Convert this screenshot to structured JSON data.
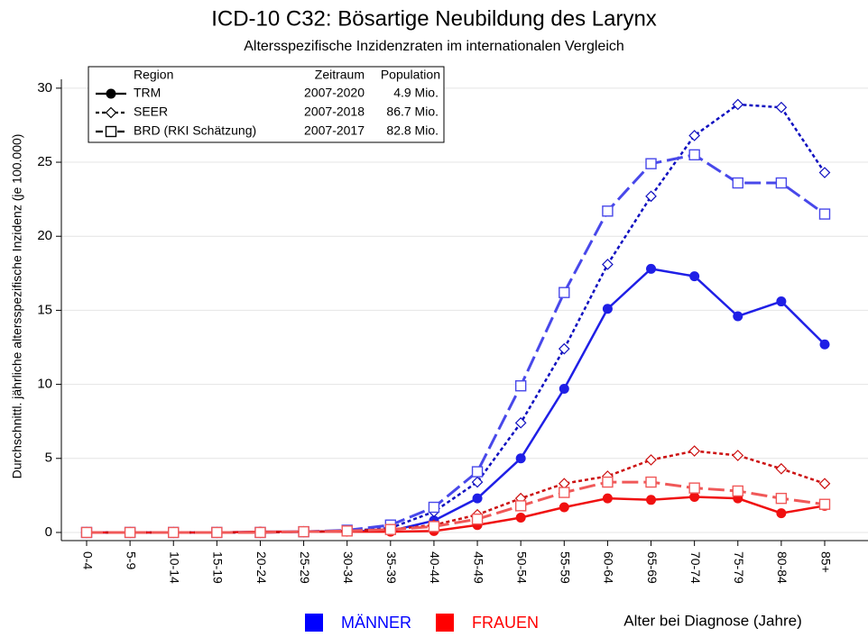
{
  "chart_data": {
    "type": "line",
    "title": "ICD-10 C32: Bösartige Neubildung des Larynx",
    "subtitle": "Altersspezifische Inzidenzraten im internationalen Vergleich",
    "ylabel": "Durchschnittl. jährliche altersspezifische Inzidenz (je 100.000)",
    "xlabel": "Alter bei Diagnose (Jahre)",
    "categories": [
      "0-4",
      "5-9",
      "10-14",
      "15-19",
      "20-24",
      "25-29",
      "30-34",
      "35-39",
      "40-44",
      "45-49",
      "50-54",
      "55-59",
      "60-64",
      "65-69",
      "70-74",
      "75-79",
      "80-84",
      "85+"
    ],
    "ylim": [
      -0.55,
      30.6
    ],
    "yticks": [
      0,
      5,
      10,
      15,
      20,
      25,
      30
    ],
    "grid": true,
    "legend": {
      "columns": [
        "Region",
        "Zeitraum",
        "Population"
      ],
      "entries": [
        {
          "period": "2007-2020",
          "population": "4.9 Mio."
        },
        {
          "period": "2007-2018",
          "population": "86.7 Mio."
        },
        {
          "period": "2007-2017",
          "population": "82.8 Mio."
        }
      ]
    },
    "groups": [
      {
        "name": "MÄNNER",
        "color": "#0000ff",
        "series": [
          {
            "name": "TRM",
            "color": "#1f1fe6",
            "dash": "solid",
            "marker": "circle",
            "values": [
              0,
              0,
              0,
              0,
              0.05,
              0.05,
              0.1,
              0.1,
              0.8,
              2.3,
              5.0,
              9.7,
              15.1,
              17.8,
              17.3,
              14.6,
              15.6,
              12.7
            ]
          },
          {
            "name": "SEER",
            "color": "#1010c0",
            "dash": "dotted",
            "marker": "diamond",
            "values": [
              0,
              0,
              0,
              0,
              0,
              0.05,
              0.1,
              0.3,
              1.4,
              3.4,
              7.4,
              12.4,
              18.1,
              22.7,
              26.8,
              28.9,
              28.7,
              24.3
            ]
          },
          {
            "name": "BRD (RKI Schätzung)",
            "color": "#4848ea",
            "dash": "dashed",
            "marker": "square",
            "values": [
              0,
              0,
              0,
              0,
              0,
              0.05,
              0.15,
              0.5,
              1.7,
              4.1,
              9.9,
              16.2,
              21.7,
              24.9,
              25.5,
              23.6,
              23.6,
              21.5
            ]
          }
        ]
      },
      {
        "name": "FRAUEN",
        "color": "#ff0000",
        "series": [
          {
            "name": "TRM",
            "color": "#f01010",
            "dash": "solid",
            "marker": "circle",
            "values": [
              0,
              0,
              0,
              0,
              0.05,
              0.05,
              0.05,
              0.05,
              0.1,
              0.5,
              1.0,
              1.7,
              2.3,
              2.2,
              2.4,
              2.3,
              1.3,
              1.8
            ]
          },
          {
            "name": "SEER",
            "color": "#cc1010",
            "dash": "dotted",
            "marker": "diamond",
            "values": [
              0,
              0,
              0,
              0,
              0,
              0.05,
              0.1,
              0.2,
              0.5,
              1.2,
              2.3,
              3.3,
              3.8,
              4.9,
              5.5,
              5.2,
              4.3,
              3.3
            ]
          },
          {
            "name": "BRD (RKI Schätzung)",
            "color": "#f05858",
            "dash": "dashed",
            "marker": "square",
            "values": [
              0,
              0,
              0,
              0,
              0,
              0.05,
              0.1,
              0.2,
              0.4,
              0.9,
              1.8,
              2.7,
              3.4,
              3.4,
              3.0,
              2.8,
              2.3,
              1.9
            ]
          }
        ]
      }
    ]
  }
}
